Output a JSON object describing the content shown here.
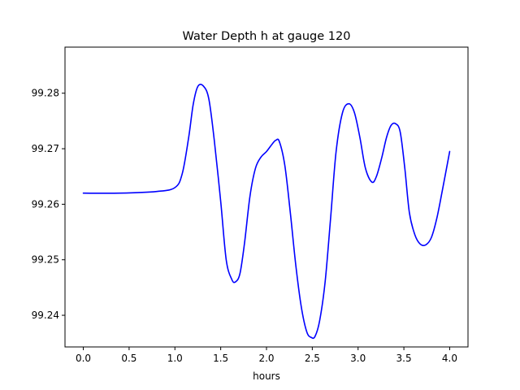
{
  "chart_data": {
    "type": "line",
    "title": "Water Depth h at gauge 120",
    "xlabel": "hours",
    "ylabel": "",
    "xlim": [
      -0.2,
      4.2
    ],
    "ylim": [
      99.2343,
      99.2883
    ],
    "xticks": [
      0.0,
      0.5,
      1.0,
      1.5,
      2.0,
      2.5,
      3.0,
      3.5,
      4.0
    ],
    "xtick_labels": [
      "0.0",
      "0.5",
      "1.0",
      "1.5",
      "2.0",
      "2.5",
      "3.0",
      "3.5",
      "4.0"
    ],
    "yticks": [
      99.24,
      99.25,
      99.26,
      99.27,
      99.28
    ],
    "ytick_labels": [
      "99.24",
      "99.25",
      "99.26",
      "99.27",
      "99.28"
    ],
    "grid": false,
    "series": [
      {
        "color": "#0000ff",
        "x": [
          0.0,
          0.4,
          0.8,
          1.0,
          1.08,
          1.15,
          1.2,
          1.25,
          1.31,
          1.37,
          1.43,
          1.5,
          1.56,
          1.62,
          1.66,
          1.71,
          1.76,
          1.82,
          1.88,
          1.94,
          2.0,
          2.06,
          2.1,
          2.14,
          2.2,
          2.26,
          2.32,
          2.38,
          2.44,
          2.49,
          2.53,
          2.58,
          2.64,
          2.7,
          2.76,
          2.83,
          2.9,
          2.96,
          3.02,
          3.08,
          3.15,
          3.2,
          3.26,
          3.31,
          3.36,
          3.41,
          3.46,
          3.51,
          3.56,
          3.62,
          3.68,
          3.74,
          3.8,
          3.86,
          3.92,
          4.0
        ],
        "y": [
          99.262,
          99.262,
          99.2623,
          99.263,
          99.2655,
          99.272,
          99.278,
          99.2812,
          99.2813,
          99.279,
          99.2715,
          99.2605,
          99.25,
          99.2465,
          99.246,
          99.2475,
          99.253,
          99.2615,
          99.2665,
          99.2685,
          99.2695,
          99.2708,
          99.2715,
          99.2713,
          99.267,
          99.2585,
          99.249,
          99.2415,
          99.237,
          99.236,
          99.2362,
          99.239,
          99.246,
          99.2575,
          99.2695,
          99.2765,
          99.2781,
          99.2765,
          99.272,
          99.2665,
          99.264,
          99.265,
          99.2685,
          99.272,
          99.2742,
          99.2745,
          99.273,
          99.2665,
          99.2585,
          99.2545,
          99.2528,
          99.2527,
          99.254,
          99.2575,
          99.2625,
          99.2695
        ]
      }
    ]
  }
}
